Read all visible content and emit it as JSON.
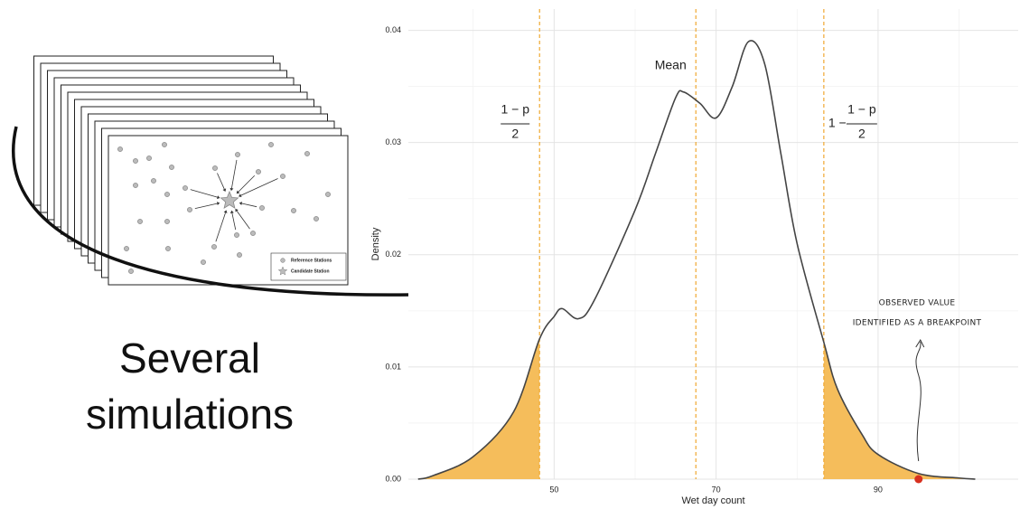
{
  "chart_data": {
    "type": "line",
    "x_label": "Wet day count",
    "y_label": "Density",
    "x": [
      33.2,
      35,
      40,
      45,
      48.2,
      50,
      51,
      53,
      55,
      60,
      62.5,
      65,
      66,
      68,
      70,
      72,
      74,
      76,
      78,
      80,
      83.3,
      85,
      88,
      90,
      95,
      100,
      102
    ],
    "series": [
      {
        "color": "#444444",
        "values": [
          0,
          0.0003,
          0.002,
          0.006,
          0.0125,
          0.0145,
          0.0152,
          0.0143,
          0.016,
          0.024,
          0.029,
          0.034,
          0.0345,
          0.0335,
          0.0322,
          0.035,
          0.039,
          0.037,
          0.029,
          0.021,
          0.0122,
          0.008,
          0.004,
          0.0022,
          0.0005,
          0.0001,
          0
        ]
      }
    ],
    "xlim": [
      32,
      107.3
    ],
    "ylim": [
      0,
      0.0419
    ],
    "xticks": [
      50,
      70,
      90
    ],
    "yticks": [
      {
        "value": 0,
        "label": "0.00"
      },
      {
        "value": 0.01,
        "label": "0.01"
      },
      {
        "value": 0.02,
        "label": "0.02"
      },
      {
        "value": 0.03,
        "label": "0.03"
      },
      {
        "value": 0.04,
        "label": "0.04"
      }
    ],
    "x_minor_grid": [
      40,
      60,
      80,
      100
    ],
    "y_minor_grid": [
      0.005,
      0.015,
      0.025,
      0.035
    ],
    "grid": true,
    "lower_quantile": 48.2,
    "mean": 67.5,
    "upper_quantile": 83.3,
    "observed_value": 95,
    "shade_color": "#f5bd5b",
    "quantile_line_color": "#f0a830",
    "observed_color": "#d7301f",
    "mean_label": "Mean",
    "lower_fraction": {
      "numerator": "1 − p",
      "denominator": "2"
    },
    "upper_fraction": {
      "prefix": "1 −",
      "numerator": "1 − p",
      "denominator": "2"
    },
    "observed_note": [
      "OBSERVED VALUE",
      "IDENTIFIED AS A BREAKPOINT"
    ]
  },
  "illustration": {
    "caption": [
      "Several",
      "simulations"
    ],
    "legend": [
      "Reference Stations",
      "Candidate Station"
    ]
  }
}
